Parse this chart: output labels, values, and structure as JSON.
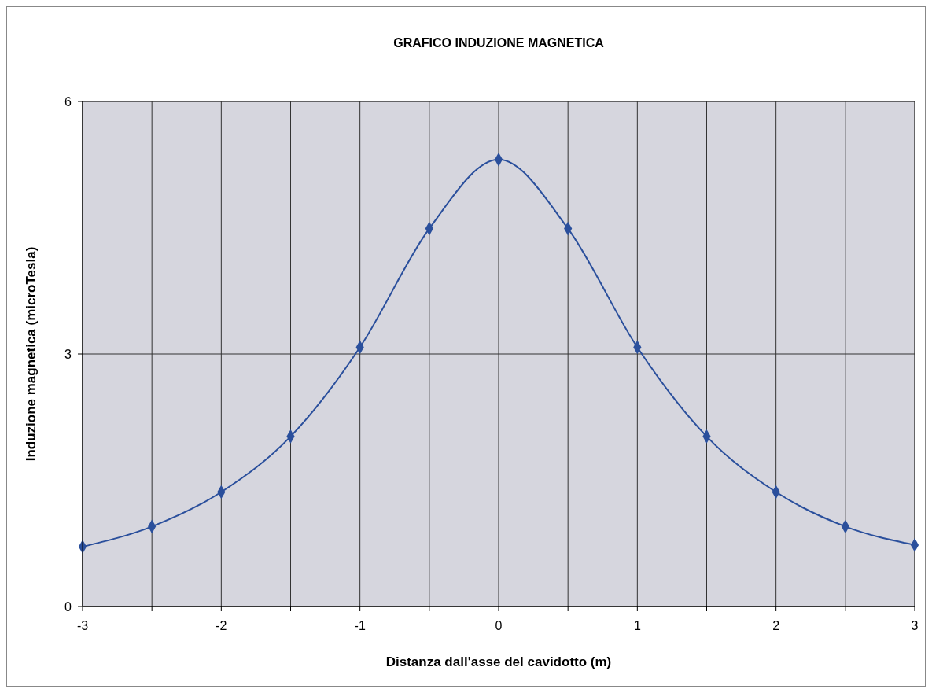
{
  "chart_data": {
    "type": "line",
    "title": "GRAFICO INDUZIONE MAGNETICA",
    "xlabel": "Distanza dall'asse del cavidotto (m)",
    "ylabel": "Induzione magnetica (microTesla)",
    "x": [
      -3,
      -2.5,
      -2,
      -1.5,
      -1,
      -0.5,
      0,
      0.5,
      1,
      1.5,
      2,
      2.5,
      3
    ],
    "series": [
      {
        "color": "#2a4f9c",
        "values": [
          0.71,
          0.95,
          1.36,
          2.02,
          3.08,
          4.49,
          5.31,
          4.49,
          3.08,
          2.02,
          1.36,
          0.95,
          0.73
        ]
      }
    ],
    "xlim": [
      -3,
      3
    ],
    "xticks": [
      -3,
      {
        "value": -2.5,
        "label": null
      },
      -2,
      {
        "value": -1.5,
        "label": null
      },
      -1,
      {
        "value": -0.5,
        "label": null
      },
      0,
      {
        "value": 0.5,
        "label": null
      },
      1,
      {
        "value": 1.5,
        "label": null
      },
      2,
      {
        "value": 2.5,
        "label": null
      },
      3
    ],
    "ylim": [
      0,
      6
    ],
    "yticks": [
      0,
      3,
      6
    ],
    "grid": true,
    "marker": "diamond",
    "line_style": "solid"
  }
}
